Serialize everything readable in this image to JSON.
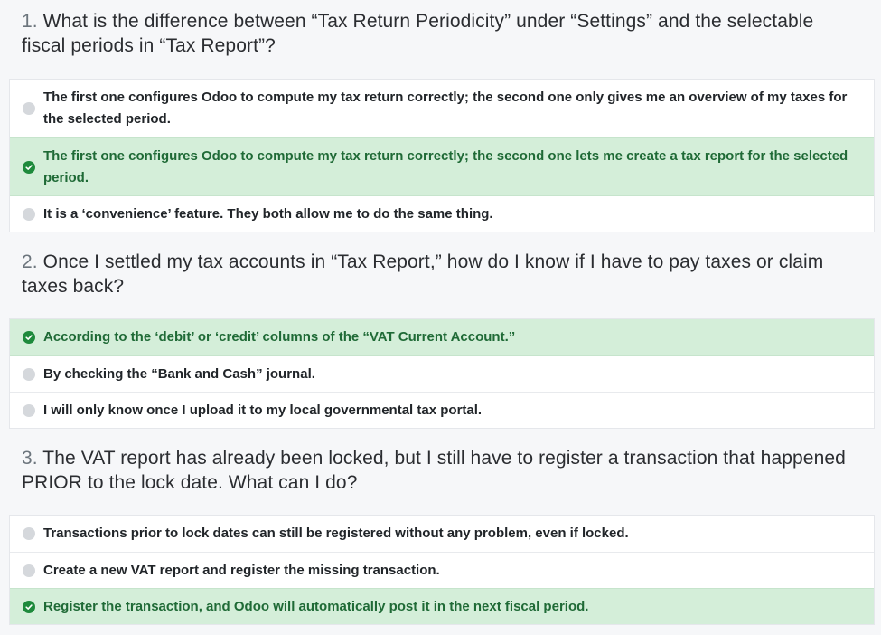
{
  "questions": [
    {
      "number": "1.",
      "text": "What is the difference between “Tax Return Periodicity” under “Settings” and the selectable fiscal periods in “Tax Report”?",
      "answers": [
        {
          "text": "The first one configures Odoo to compute my tax return correctly; the second one only gives me an overview of my taxes for the selected period.",
          "correct": false
        },
        {
          "text": "The first one configures Odoo to compute my tax return correctly; the second one lets me create a tax report for the selected period.",
          "correct": true
        },
        {
          "text": "It is a ‘convenience’ feature. They both allow me to do the same thing.",
          "correct": false
        }
      ]
    },
    {
      "number": "2.",
      "text": "Once I settled my tax accounts in “Tax Report,” how do I know if I have to pay taxes or claim taxes back?",
      "answers": [
        {
          "text": "According to the ‘debit’ or ‘credit’ columns of the “VAT Current Account.”",
          "correct": true
        },
        {
          "text": "By checking the “Bank and Cash” journal.",
          "correct": false
        },
        {
          "text": "I will only know once I upload it to my local governmental tax portal.",
          "correct": false
        }
      ]
    },
    {
      "number": "3.",
      "text": "The VAT report has already been locked, but I still have to register a transaction that happened PRIOR to the lock date. What can I do?",
      "answers": [
        {
          "text": "Transactions prior to lock dates can still be registered without any problem, even if locked.",
          "correct": false
        },
        {
          "text": "Create a new VAT report and register the missing transaction.",
          "correct": false
        },
        {
          "text": "Register the transaction, and Odoo will automatically post it in the next fiscal period.",
          "correct": true
        }
      ]
    }
  ],
  "icons": {
    "radio": "radio-empty-icon",
    "check": "check-circle-icon"
  },
  "colors": {
    "correct_bg": "#d4eed9",
    "correct_text": "#1f6a36",
    "check_icon": "#1e8a3c",
    "radio_icon": "#d5d8dc"
  }
}
